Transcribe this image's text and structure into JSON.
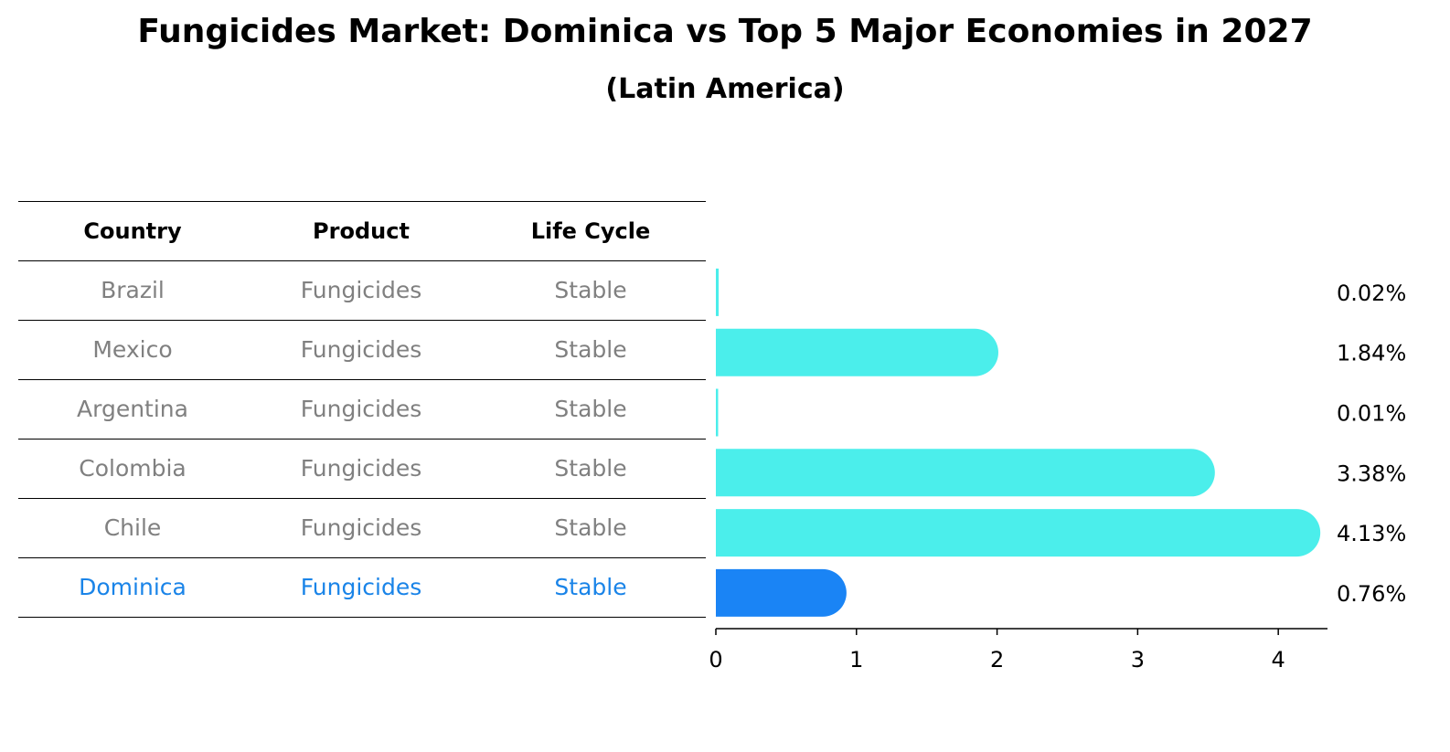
{
  "title": "Fungicides Market: Dominica vs Top 5 Major Economies in 2027",
  "subtitle": "(Latin America)",
  "table": {
    "headers": [
      "Country",
      "Product",
      "Life Cycle"
    ],
    "rows": [
      {
        "country": "Brazil",
        "product": "Fungicides",
        "life_cycle": "Stable"
      },
      {
        "country": "Mexico",
        "product": "Fungicides",
        "life_cycle": "Stable"
      },
      {
        "country": "Argentina",
        "product": "Fungicides",
        "life_cycle": "Stable"
      },
      {
        "country": "Colombia",
        "product": "Fungicides",
        "life_cycle": "Stable"
      },
      {
        "country": "Chile",
        "product": "Fungicides",
        "life_cycle": "Stable"
      },
      {
        "country": "Dominica",
        "product": "Fungicides",
        "life_cycle": "Stable"
      }
    ]
  },
  "colors": {
    "bar": "#4beeeb",
    "highlight": "#1a84f5",
    "highlight_text": "#1a84e8",
    "muted_text": "#808080"
  },
  "chart_data": {
    "type": "bar",
    "orientation": "horizontal",
    "categories": [
      "Brazil",
      "Mexico",
      "Argentina",
      "Colombia",
      "Chile",
      "Dominica"
    ],
    "values": [
      0.02,
      1.84,
      0.01,
      3.38,
      4.13,
      0.76
    ],
    "value_labels": [
      "0.02%",
      "1.84%",
      "0.01%",
      "3.38%",
      "4.13%",
      "0.76%"
    ],
    "highlight_category": "Dominica",
    "xlim": [
      0,
      4.35
    ],
    "xticks": [
      0,
      1,
      2,
      3,
      4
    ],
    "xtick_labels": [
      "0",
      "1",
      "2",
      "3",
      "4"
    ],
    "grid": false,
    "xlabel": "",
    "ylabel": ""
  }
}
